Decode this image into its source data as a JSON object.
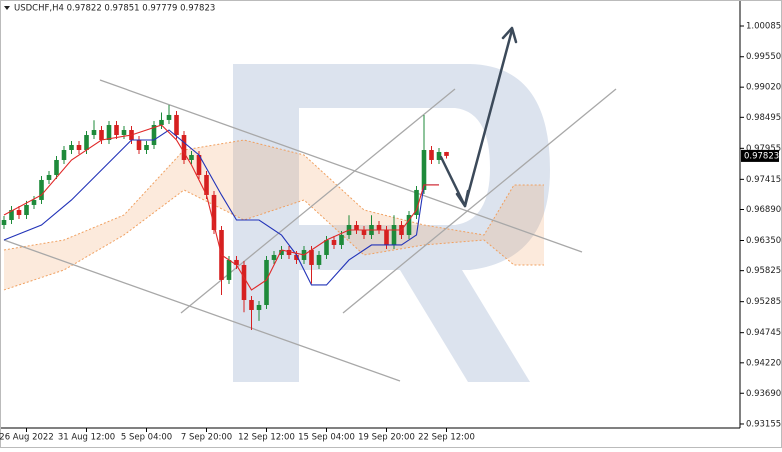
{
  "chart_data": {
    "type": "candlestick",
    "header": "USDCHF,H4  0.97822 0.97851 0.97779 0.97823",
    "categories": [
      null,
      null,
      null,
      "26 Aug 2022",
      null,
      null,
      null,
      null,
      null,
      null,
      null,
      "31 Aug 12:00",
      null,
      null,
      null,
      null,
      null,
      null,
      null,
      "5 Sep 04:00",
      null,
      null,
      null,
      null,
      null,
      null,
      null,
      "7 Sep 20:00",
      null,
      null,
      null,
      null,
      null,
      null,
      null,
      "12 Sep 12:00",
      null,
      null,
      null,
      null,
      null,
      null,
      null,
      "15 Sep 04:00",
      null,
      null,
      null,
      null,
      null,
      null,
      null,
      "19 Sep 20:00",
      null,
      null,
      null,
      null,
      null,
      null,
      null,
      "22 Sep 12:00"
    ],
    "open": [
      0.9662,
      0.96707,
      0.96881,
      0.96794,
      0.96969,
      0.97056,
      0.97404,
      0.97491,
      0.97752,
      0.97926,
      0.98013,
      0.97926,
      0.98187,
      0.98274,
      0.981,
      0.98361,
      0.98187,
      0.98274,
      0.981,
      0.97926,
      0.98013,
      0.98361,
      0.98449,
      0.98536,
      0.98187,
      0.97752,
      0.97839,
      0.97491,
      0.97143,
      0.96533,
      0.95663,
      0.96011,
      0.95924,
      0.95314,
      0.9514,
      0.95227,
      0.96011,
      0.96098,
      0.96185,
      0.96098,
      0.96011,
      0.96185,
      0.95924,
      0.96098,
      0.96359,
      0.96272,
      0.96446,
      0.9662,
      0.96533,
      0.96446,
      0.9662,
      0.96533,
      0.96272,
      0.9662,
      0.96446,
      0.96794,
      0.9723,
      0.97926,
      0.97752,
      0.97891
    ],
    "high": [
      0.96777,
      0.96951,
      0.96951,
      0.97039,
      0.97126,
      0.97474,
      0.97561,
      0.97822,
      0.97996,
      0.98083,
      0.98083,
      0.98257,
      0.98444,
      0.98344,
      0.98431,
      0.98431,
      0.98344,
      0.98344,
      0.9817,
      0.98083,
      0.98431,
      0.9858,
      0.9871,
      0.98606,
      0.98257,
      0.97909,
      0.97909,
      0.97561,
      0.97213,
      0.96603,
      0.96081,
      0.96081,
      0.95994,
      0.95384,
      0.95297,
      0.96081,
      0.96168,
      0.96255,
      0.96255,
      0.96168,
      0.96255,
      0.96255,
      0.96168,
      0.96429,
      0.96429,
      0.96516,
      0.9679,
      0.9669,
      0.96603,
      0.9679,
      0.9669,
      0.96603,
      0.9679,
      0.9669,
      0.96864,
      0.973,
      0.98536,
      0.97996,
      0.97961,
      0.97894
    ],
    "low": [
      0.9655,
      0.96637,
      0.96724,
      0.96724,
      0.96899,
      0.96986,
      0.97334,
      0.97421,
      0.97682,
      0.97856,
      0.97856,
      0.97856,
      0.98117,
      0.9803,
      0.9803,
      0.98117,
      0.98117,
      0.9803,
      0.97856,
      0.97856,
      0.97943,
      0.98291,
      0.98379,
      0.98117,
      0.97682,
      0.97682,
      0.97421,
      0.97073,
      0.96463,
      0.954,
      0.95593,
      0.95854,
      0.951,
      0.94792,
      0.9495,
      0.95157,
      0.95941,
      0.96028,
      0.96028,
      0.95941,
      0.95941,
      0.956,
      0.95854,
      0.96028,
      0.96202,
      0.96202,
      0.96376,
      0.96463,
      0.96376,
      0.96376,
      0.96463,
      0.96202,
      0.96202,
      0.96376,
      0.96376,
      0.96724,
      0.9716,
      0.97682,
      0.97682,
      0.97779
    ],
    "close": [
      0.96707,
      0.96881,
      0.96794,
      0.96969,
      0.97056,
      0.97404,
      0.97491,
      0.97752,
      0.97926,
      0.98013,
      0.97926,
      0.98187,
      0.98274,
      0.981,
      0.98361,
      0.98187,
      0.98274,
      0.981,
      0.97926,
      0.98013,
      0.98361,
      0.98449,
      0.98536,
      0.98187,
      0.97752,
      0.97839,
      0.97491,
      0.97143,
      0.96533,
      0.95663,
      0.96011,
      0.95924,
      0.95314,
      0.9514,
      0.95227,
      0.96011,
      0.96098,
      0.96185,
      0.96098,
      0.96011,
      0.96185,
      0.95924,
      0.96098,
      0.96359,
      0.96272,
      0.96446,
      0.9662,
      0.96533,
      0.96446,
      0.9662,
      0.96533,
      0.96272,
      0.9662,
      0.96446,
      0.96794,
      0.9723,
      0.97926,
      0.97752,
      0.97891,
      0.97823
    ],
    "up_color": "#1e8a3a",
    "down_color": "#d62020",
    "tenkan": {
      "color": "#e02828",
      "x": [
        0,
        5,
        9,
        13,
        17,
        21,
        23,
        25,
        27,
        29,
        31,
        33,
        35,
        37,
        40,
        43,
        46,
        49,
        53,
        55,
        56,
        58
      ],
      "values": [
        0.96794,
        0.97143,
        0.97752,
        0.981,
        0.98187,
        0.98361,
        0.981,
        0.97665,
        0.97143,
        0.96098,
        0.95924,
        0.95489,
        0.95663,
        0.96185,
        0.96098,
        0.96359,
        0.96533,
        0.96533,
        0.96533,
        0.96881,
        0.97317,
        0.97317
      ]
    },
    "kijun": {
      "color": "#2233b8",
      "x": [
        0,
        5,
        9,
        13,
        17,
        20,
        22,
        26,
        29,
        31,
        34,
        37,
        39,
        41,
        43,
        46,
        49,
        53,
        55,
        56,
        58
      ],
      "values": [
        0.96359,
        0.9662,
        0.97056,
        0.97578,
        0.981,
        0.981,
        0.98274,
        0.97839,
        0.97143,
        0.96707,
        0.96707,
        0.96446,
        0.96098,
        0.95576,
        0.95576,
        0.96011,
        0.96272,
        0.96272,
        0.96446,
        0.97317,
        0.97317
      ]
    },
    "cloud": {
      "color": "#f0a060",
      "x": [
        0,
        8,
        16,
        24,
        32,
        40,
        48,
        56,
        64,
        68,
        72
      ],
      "span_a": [
        0.96185,
        0.96359,
        0.96794,
        0.97926,
        0.981,
        0.97839,
        0.96881,
        0.9662,
        0.96446,
        0.97317,
        0.97317
      ],
      "span_b": [
        0.95489,
        0.95837,
        0.96446,
        0.9723,
        0.96707,
        0.97056,
        0.96098,
        0.96272,
        0.96359,
        0.95924,
        0.95924
      ]
    },
    "ylim": [
      0.93085,
      1.00538
    ],
    "yticks": [
      1.00085,
      {
        "value": 0.9955,
        "label": "0.99550"
      },
      {
        "value": 0.9902,
        "label": "0.99020"
      },
      0.98495,
      0.97955,
      0.97415,
      {
        "value": 0.9689,
        "label": "0.96890"
      },
      {
        "value": 0.9635,
        "label": "0.96350"
      },
      0.95825,
      0.95285,
      0.94745,
      {
        "value": 0.9422,
        "label": "0.94220"
      },
      {
        "value": 0.9369,
        "label": "0.93690"
      },
      0.93155
    ]
  }
}
